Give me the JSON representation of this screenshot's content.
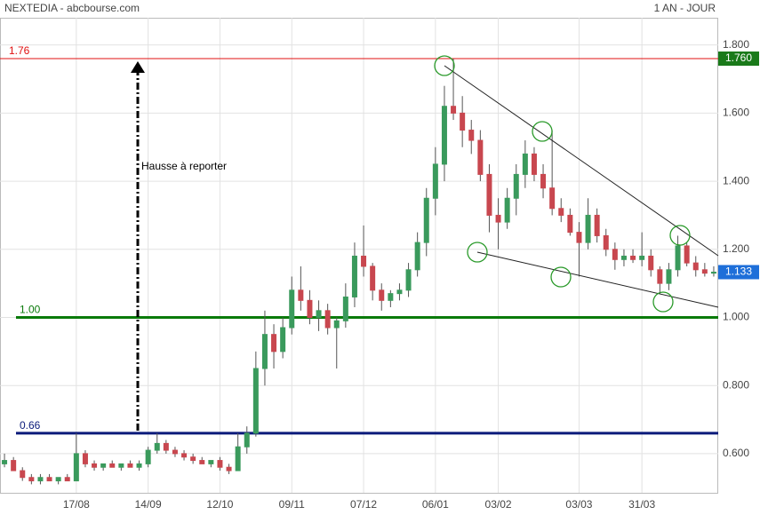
{
  "chart_data": {
    "type": "candlestick",
    "title": "NEXTEDIA - abcbourse.com",
    "subtitle": "1 AN - JOUR",
    "categories": [
      null,
      null,
      null,
      null,
      null,
      null,
      null,
      null,
      "17/08",
      null,
      null,
      null,
      null,
      null,
      null,
      null,
      "14/09",
      null,
      null,
      null,
      null,
      null,
      null,
      null,
      "12/10",
      null,
      null,
      null,
      null,
      null,
      null,
      null,
      "09/11",
      null,
      null,
      null,
      null,
      null,
      null,
      null,
      "07/12",
      null,
      null,
      null,
      null,
      null,
      null,
      null,
      "06/01",
      null,
      null,
      null,
      null,
      null,
      null,
      "03/02",
      null,
      null,
      null,
      null,
      null,
      null,
      null,
      null,
      "03/03",
      null,
      null,
      null,
      null,
      null,
      null,
      "31/03",
      null,
      null,
      null,
      null,
      null,
      null,
      null,
      null
    ],
    "open": [
      0.57,
      0.58,
      0.55,
      0.53,
      0.52,
      0.53,
      0.52,
      0.53,
      0.52,
      0.6,
      0.57,
      0.56,
      0.57,
      0.56,
      0.57,
      0.56,
      0.57,
      0.61,
      0.63,
      0.61,
      0.6,
      0.59,
      0.58,
      0.57,
      0.58,
      0.56,
      0.55,
      0.62,
      0.66,
      0.85,
      0.95,
      0.9,
      0.97,
      1.08,
      1.05,
      1.0,
      1.02,
      0.97,
      0.99,
      1.06,
      1.18,
      1.15,
      1.08,
      1.05,
      1.07,
      1.08,
      1.14,
      1.22,
      1.35,
      1.45,
      1.62,
      1.6,
      1.55,
      1.52,
      1.42,
      1.3,
      1.28,
      1.35,
      1.42,
      1.48,
      1.42,
      1.38,
      1.32,
      1.3,
      1.25,
      1.22,
      1.3,
      1.24,
      1.2,
      1.17,
      1.18,
      1.17,
      1.18,
      1.14,
      1.1,
      1.14,
      1.21,
      1.16,
      1.14,
      1.13
    ],
    "high": [
      0.6,
      0.59,
      0.56,
      0.54,
      0.54,
      0.54,
      0.53,
      0.54,
      0.66,
      0.61,
      0.58,
      0.57,
      0.58,
      0.57,
      0.58,
      0.58,
      0.62,
      0.66,
      0.64,
      0.62,
      0.61,
      0.6,
      0.59,
      0.58,
      0.59,
      0.57,
      0.66,
      0.68,
      0.9,
      1.02,
      0.98,
      1.0,
      1.12,
      1.15,
      1.08,
      1.05,
      1.04,
      1.0,
      1.1,
      1.22,
      1.27,
      1.16,
      1.1,
      1.08,
      1.1,
      1.16,
      1.25,
      1.38,
      1.5,
      1.68,
      1.76,
      1.65,
      1.58,
      1.55,
      1.45,
      1.35,
      1.38,
      1.45,
      1.52,
      1.5,
      1.45,
      1.55,
      1.35,
      1.32,
      1.28,
      1.35,
      1.32,
      1.26,
      1.22,
      1.2,
      1.2,
      1.25,
      1.2,
      1.15,
      1.16,
      1.24,
      1.22,
      1.18,
      1.16,
      1.15
    ],
    "low": [
      0.56,
      0.55,
      0.52,
      0.51,
      0.51,
      0.52,
      0.51,
      0.52,
      0.52,
      0.56,
      0.55,
      0.55,
      0.56,
      0.55,
      0.56,
      0.55,
      0.56,
      0.6,
      0.6,
      0.59,
      0.58,
      0.57,
      0.57,
      0.56,
      0.55,
      0.54,
      0.55,
      0.6,
      0.65,
      0.8,
      0.85,
      0.88,
      0.95,
      1.02,
      0.98,
      0.96,
      0.95,
      0.85,
      0.97,
      1.03,
      1.12,
      1.05,
      1.02,
      1.03,
      1.05,
      1.06,
      1.12,
      1.18,
      1.3,
      1.4,
      1.58,
      1.5,
      1.48,
      1.4,
      1.25,
      1.2,
      1.26,
      1.3,
      1.38,
      1.4,
      1.35,
      1.3,
      1.28,
      1.24,
      1.12,
      1.2,
      1.22,
      1.18,
      1.14,
      1.15,
      1.16,
      1.15,
      1.12,
      1.07,
      1.08,
      1.12,
      1.15,
      1.12,
      1.12,
      1.12
    ],
    "close": [
      0.58,
      0.55,
      0.53,
      0.52,
      0.53,
      0.52,
      0.53,
      0.52,
      0.6,
      0.57,
      0.56,
      0.57,
      0.56,
      0.57,
      0.56,
      0.57,
      0.61,
      0.63,
      0.61,
      0.6,
      0.59,
      0.58,
      0.57,
      0.58,
      0.56,
      0.55,
      0.62,
      0.66,
      0.85,
      0.95,
      0.9,
      0.97,
      1.08,
      1.05,
      1.0,
      1.02,
      0.97,
      0.99,
      1.06,
      1.18,
      1.15,
      1.08,
      1.05,
      1.07,
      1.08,
      1.14,
      1.22,
      1.35,
      1.45,
      1.62,
      1.6,
      1.55,
      1.52,
      1.42,
      1.3,
      1.28,
      1.35,
      1.42,
      1.48,
      1.42,
      1.38,
      1.32,
      1.3,
      1.25,
      1.22,
      1.3,
      1.24,
      1.2,
      1.17,
      1.18,
      1.17,
      1.18,
      1.14,
      1.1,
      1.14,
      1.21,
      1.16,
      1.14,
      1.13,
      1.133
    ],
    "up_color": "#3a9a5c",
    "down_color": "#c8474f",
    "ylim": [
      0.485,
      1.88
    ],
    "yticks": [
      {
        "value": 0.6,
        "label": "0.600"
      },
      {
        "value": 0.8,
        "label": "0.800"
      },
      {
        "value": 1.0,
        "label": "1.000"
      },
      {
        "value": 1.2,
        "label": "1.200"
      },
      {
        "value": 1.4,
        "label": "1.400"
      },
      {
        "value": 1.6,
        "label": "1.600"
      },
      {
        "value": 1.8,
        "label": "1.800"
      }
    ],
    "grid": true,
    "levels": [
      {
        "value": 1.76,
        "label": "1.76",
        "color": "#e01010"
      },
      {
        "value": 1.0,
        "label": "1.00",
        "color": "#0a7a0a"
      },
      {
        "value": 0.66,
        "label": "0.66",
        "color": "#0a1a7a"
      }
    ],
    "price_tags": [
      {
        "value": 1.76,
        "label": "1.760",
        "color": "#1a7a1a"
      },
      {
        "value": 1.133,
        "label": "1.133",
        "color": "#1e6fd9"
      }
    ],
    "annotation": "Hausse à reporter"
  }
}
